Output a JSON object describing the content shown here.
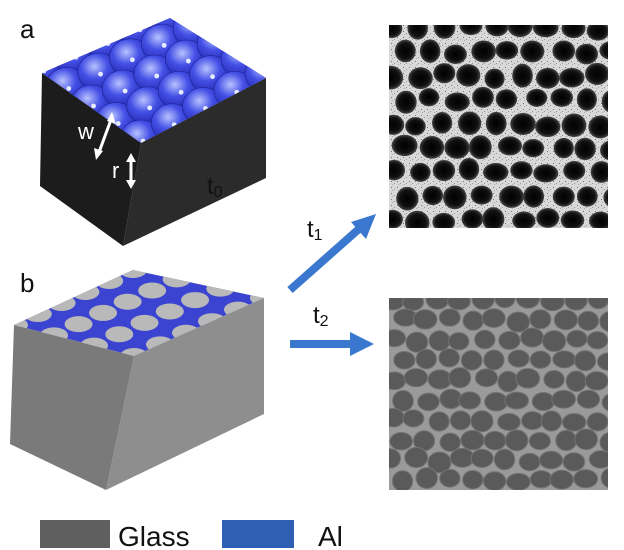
{
  "panels": {
    "a": "a",
    "b": "b"
  },
  "labels": {
    "w": "w",
    "r": "r",
    "t0_base": "t",
    "t0_sub": "0",
    "t1_base": "t",
    "t1_sub": "1",
    "t2_base": "t",
    "t2_sub": "2"
  },
  "legend": {
    "glass": "Glass",
    "al": "Al"
  },
  "colors": {
    "glass": "#5f5f5f",
    "al": "#2f5fb3",
    "arrow": "#3a78d0"
  }
}
